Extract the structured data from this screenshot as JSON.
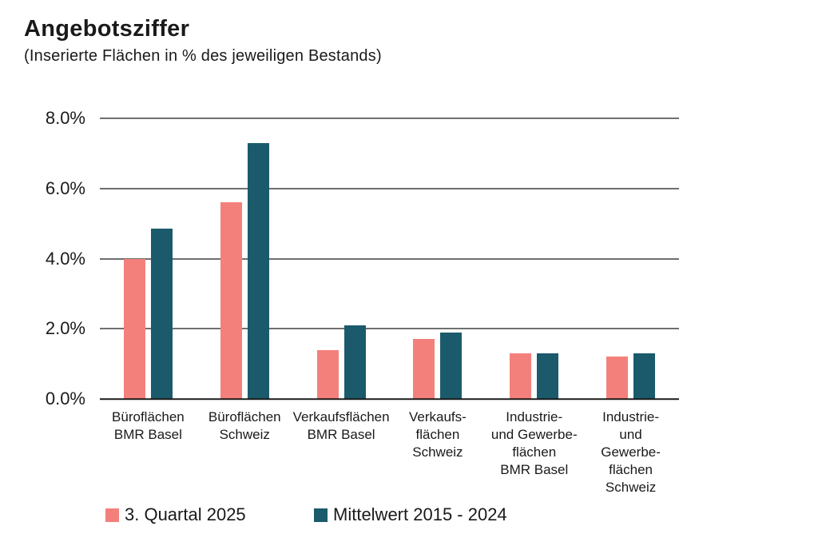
{
  "header": {
    "title": "Angebotsziffer",
    "subtitle": "(Inserierte Flächen in % des jeweiligen Bestands)"
  },
  "colors": {
    "background": "#FFFFFF",
    "text": "#1A1A1A",
    "gridline": "#6F6F6F",
    "axis_line": "#1A1A1A",
    "series_q3_2025": "#F4807C",
    "series_mittelwert": "#1B5A6B"
  },
  "chart_data": {
    "type": "bar",
    "title": "Angebotsziffer",
    "subtitle": "(Inserierte Flächen in % des jeweiligen Bestands)",
    "unit": "%",
    "ylim": [
      0,
      8
    ],
    "grid": true,
    "legend_position": "bottom",
    "yticks": [
      {
        "label": "0.0%",
        "value": 0
      },
      {
        "label": "2.0%",
        "value": 2
      },
      {
        "label": "4.0%",
        "value": 4
      },
      {
        "label": "6.0%",
        "value": 6
      },
      {
        "label": "8.0%",
        "value": 8
      }
    ],
    "categories": [
      {
        "id": "bueroflaechen-bmr-basel",
        "name": "Büroflächen BMR Basel",
        "lines": [
          "Büroflächen",
          "BMR Basel"
        ]
      },
      {
        "id": "bueroflaechen-schweiz",
        "name": "Büroflächen Schweiz",
        "lines": [
          "Büroflächen",
          "Schweiz"
        ]
      },
      {
        "id": "verkaufsflaechen-bmr-basel",
        "name": "Verkaufsflächen BMR Basel",
        "lines": [
          "Verkaufsflächen",
          "BMR Basel"
        ]
      },
      {
        "id": "verkaufsflaechen-schweiz",
        "name": "Verkaufsflächen Schweiz",
        "lines": [
          "Verkaufs-",
          "flächen",
          "Schweiz"
        ]
      },
      {
        "id": "industrie-gewerbeflaechen-bmr-basel",
        "name": "Industrie- und Gewerbeflächen BMR Basel",
        "lines": [
          "Industrie-",
          "und Gewerbe-",
          "flächen",
          "BMR Basel"
        ]
      },
      {
        "id": "industrie-gewerbeflaechen-schweiz",
        "name": "Industrie- und Gewerbeflächen Schweiz",
        "lines": [
          "Industrie-",
          "und",
          "Gewerbe-",
          "flächen",
          "Schweiz"
        ]
      }
    ],
    "series": [
      {
        "id": "q3-2025",
        "name": "3. Quartal 2025",
        "color": "#F4807C",
        "values": [
          4.0,
          5.6,
          1.4,
          1.7,
          1.3,
          1.2
        ]
      },
      {
        "id": "mittelwert-2015-2024",
        "name": "Mittelwert 2015 - 2024",
        "color": "#1B5A6B",
        "values": [
          4.85,
          7.3,
          2.1,
          1.9,
          1.3,
          1.3
        ]
      }
    ]
  }
}
